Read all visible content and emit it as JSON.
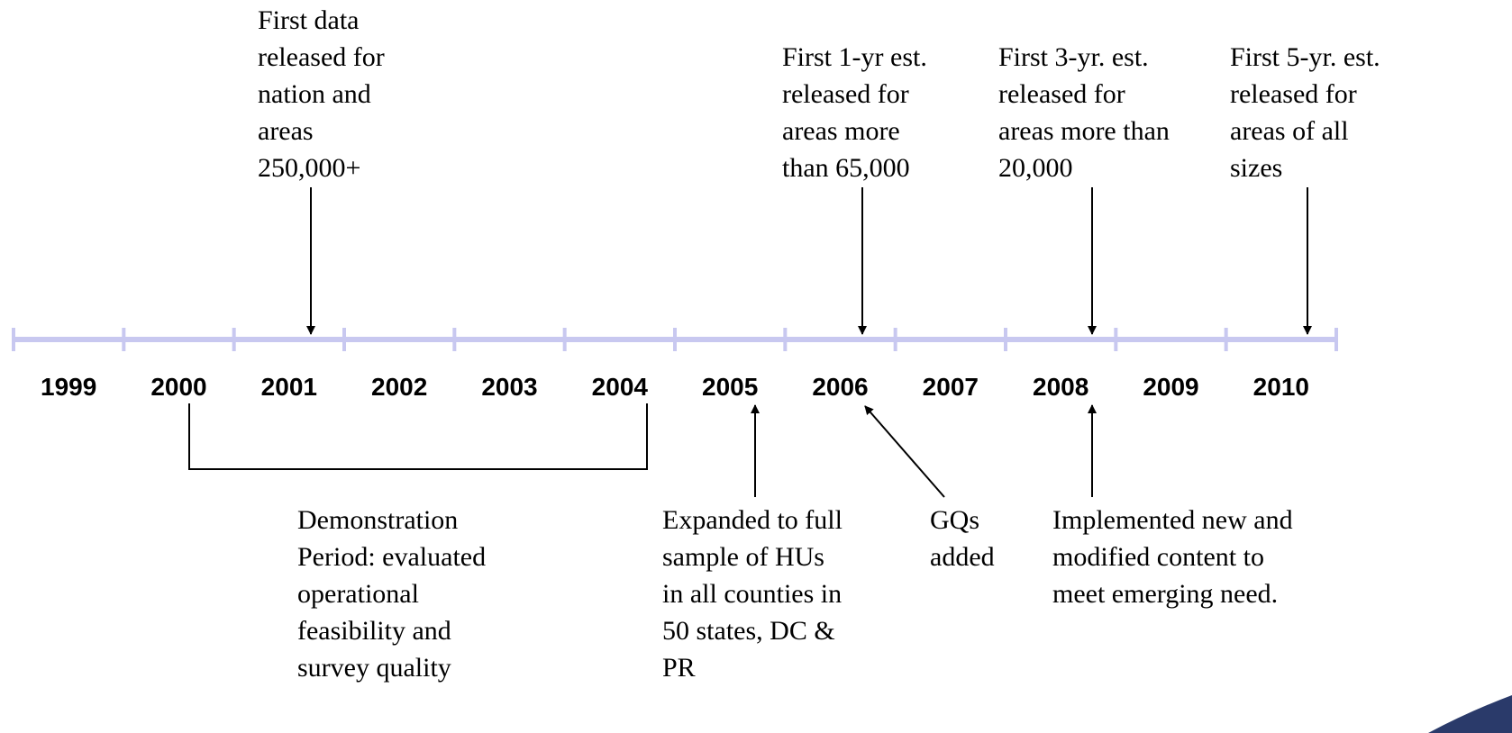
{
  "timeline": {
    "years": [
      "1999",
      "2000",
      "2001",
      "2002",
      "2003",
      "2004",
      "2005",
      "2006",
      "2007",
      "2008",
      "2009",
      "2010"
    ],
    "top_notes": [
      {
        "lines": [
          "First data",
          "released for",
          "nation and",
          "areas",
          "250,000+"
        ]
      },
      {
        "lines": [
          "First 1-yr est.",
          "released for",
          "areas more",
          "than 65,000"
        ]
      },
      {
        "lines": [
          "First 3-yr. est.",
          "released for",
          "areas more than",
          "20,000"
        ]
      },
      {
        "lines": [
          "First 5-yr. est.",
          "released for",
          "areas of all",
          "sizes"
        ]
      }
    ],
    "bottom_notes": [
      {
        "lines": [
          "Demonstration",
          "Period: evaluated",
          "operational",
          "feasibility and",
          "survey quality"
        ]
      },
      {
        "lines": [
          "Expanded to full",
          "sample of HUs",
          "in all counties in",
          "50 states, DC &",
          "PR"
        ]
      },
      {
        "lines": [
          "GQs",
          "added"
        ]
      },
      {
        "lines": [
          "Implemented new and",
          "modified content to",
          "meet emerging need."
        ]
      }
    ]
  }
}
